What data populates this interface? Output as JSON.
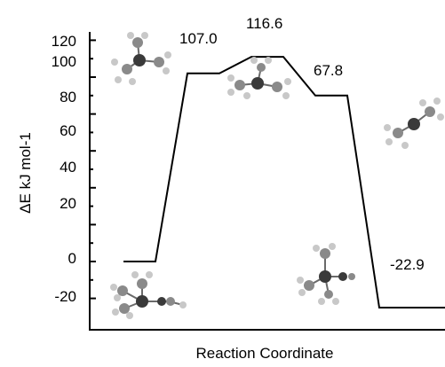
{
  "chart_data": {
    "type": "line",
    "xlabel": "Reaction Coordinate",
    "ylabel": "ΔE kJ mol-1",
    "ylim": [
      -30,
      120
    ],
    "yticks": [
      "120",
      "100",
      "80",
      "60",
      "40",
      "20",
      "0",
      "-20"
    ],
    "grid": false,
    "series": [
      {
        "x": [
          0.0,
          0.6,
          1.2,
          1.8,
          2.4,
          3.0,
          3.6,
          4.2,
          4.8,
          5.4,
          6.0,
          6.6,
          7.2
        ],
        "values": [
          0,
          0,
          102,
          102,
          111,
          111,
          90,
          90,
          -25,
          -25,
          -25,
          -25,
          -25
        ]
      }
    ],
    "annotations": [
      "107.0",
      "116.6",
      "67.8",
      "-22.9"
    ]
  },
  "icons": {
    "molecule_reactant": "molecule-reactant-icon",
    "molecule_ts1": "molecule-ts1-icon",
    "molecule_ts2": "molecule-ts2-icon",
    "molecule_intermediate": "molecule-intermediate-icon",
    "molecule_product": "molecule-product-icon"
  }
}
